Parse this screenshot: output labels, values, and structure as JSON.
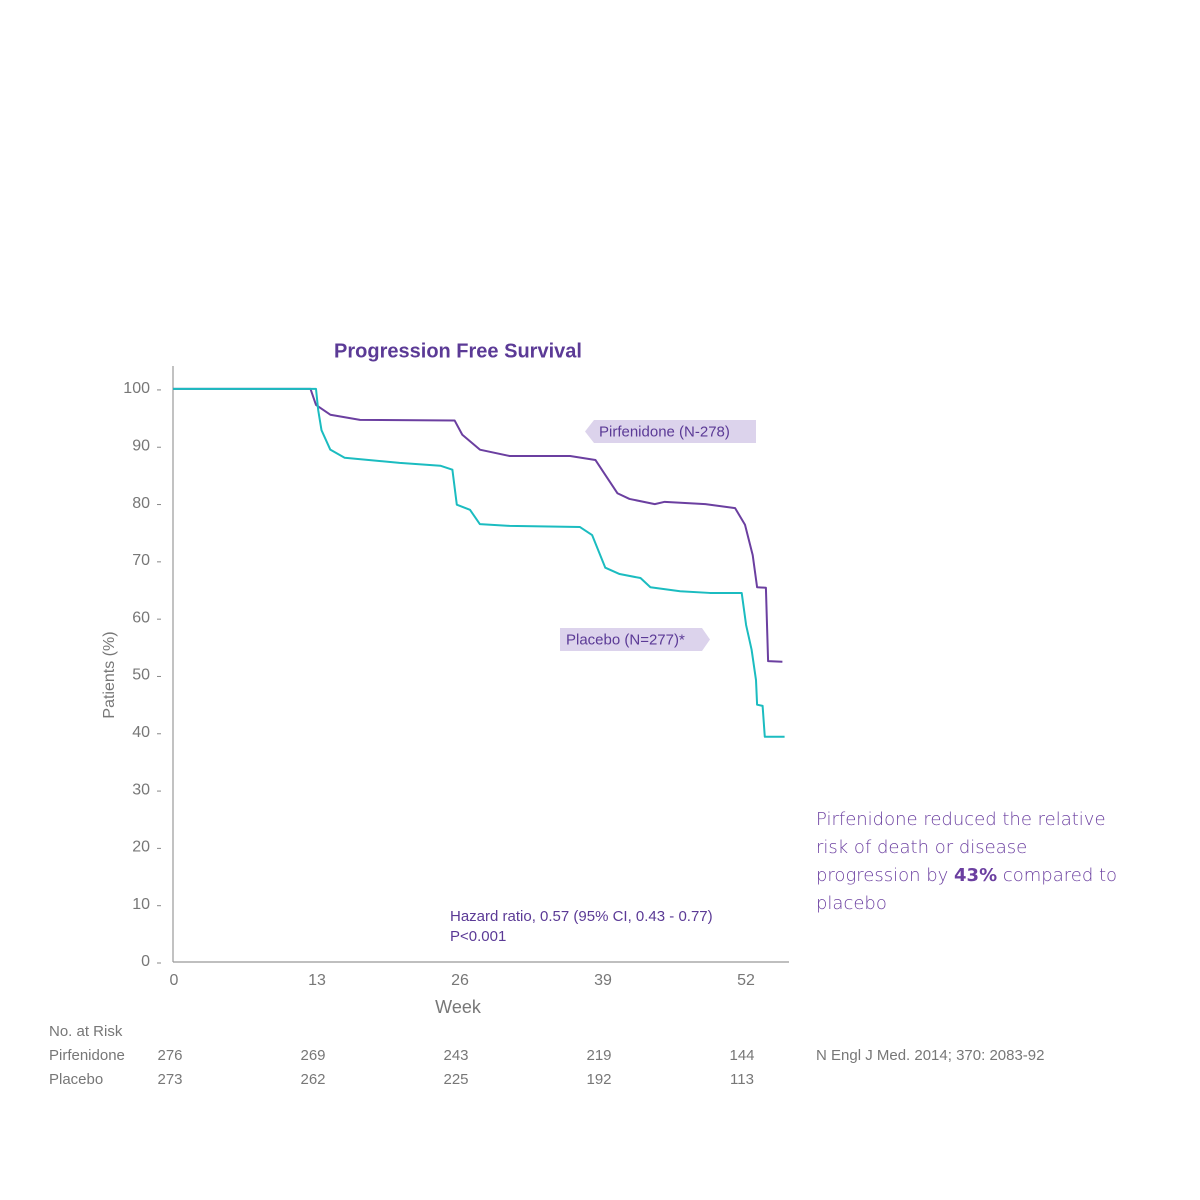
{
  "chart_data": {
    "type": "line",
    "title": "Progression Free Survival",
    "xlabel": "Week",
    "ylabel": "Patients (%)",
    "xlim": [
      0,
      56
    ],
    "xticks": [
      0,
      13,
      26,
      39,
      52
    ],
    "ylim": [
      0,
      104
    ],
    "yticks": [
      0,
      10,
      20,
      30,
      40,
      50,
      60,
      70,
      80,
      90,
      100
    ],
    "grid": false,
    "series": [
      {
        "name": "Pirfenidone (N-278)",
        "color": "#6b3fa0",
        "x": [
          0,
          12.5,
          13,
          14.3,
          17,
          25.6,
          26.3,
          27.9,
          30.6,
          36.1,
          38.4,
          39.3,
          40.4,
          41.5,
          43.8,
          44.7,
          48.4,
          51.1,
          52,
          52.7,
          53.1,
          53.9,
          54.1,
          55.4
        ],
        "values": [
          100,
          100,
          97.2,
          95.5,
          94.6,
          94.5,
          92,
          89.4,
          88.3,
          88.3,
          87.6,
          85,
          81.8,
          80.8,
          79.9,
          80.3,
          79.9,
          79.2,
          76.3,
          71,
          65.4,
          65.3,
          52.5,
          52.4
        ]
      },
      {
        "name": "Placebo (N=277)*",
        "color": "#1bbcc0",
        "x": [
          0,
          13,
          13.2,
          13.5,
          14.3,
          15.6,
          20.6,
          24.3,
          25.4,
          25.8,
          27,
          27.9,
          30.6,
          37,
          38.1,
          39.3,
          40.6,
          42.5,
          43.4,
          46.1,
          48.8,
          51.7,
          52.1,
          52.6,
          53,
          53.1,
          53.6,
          53.8,
          55.6
        ],
        "values": [
          100,
          100,
          96.3,
          92.8,
          89.4,
          88,
          87.1,
          86.6,
          85.9,
          79.8,
          78.9,
          76.4,
          76.1,
          75.9,
          74.5,
          68.8,
          67.7,
          67,
          65.4,
          64.7,
          64.4,
          64.4,
          58.8,
          54.5,
          49.2,
          44.9,
          44.7,
          39.3,
          39.3
        ]
      }
    ],
    "annotations": [
      "Hazard ratio, 0.57 (95% CI, 0.43 - 0.77)",
      "P<0.001"
    ]
  },
  "risk_table": {
    "title": "No. at Risk",
    "rows": [
      {
        "name": "Pirfenidone",
        "values": [
          276,
          269,
          243,
          219,
          144
        ]
      },
      {
        "name": "Placebo",
        "values": [
          273,
          262,
          225,
          192,
          113
        ]
      }
    ]
  },
  "callout": {
    "before": "Pirfenidone reduced the relative risk of death or disease progression by ",
    "emphasis": "43%",
    "after": " compared to placebo"
  },
  "citation": "N Engl J Med. 2014; 370: 2083-92"
}
